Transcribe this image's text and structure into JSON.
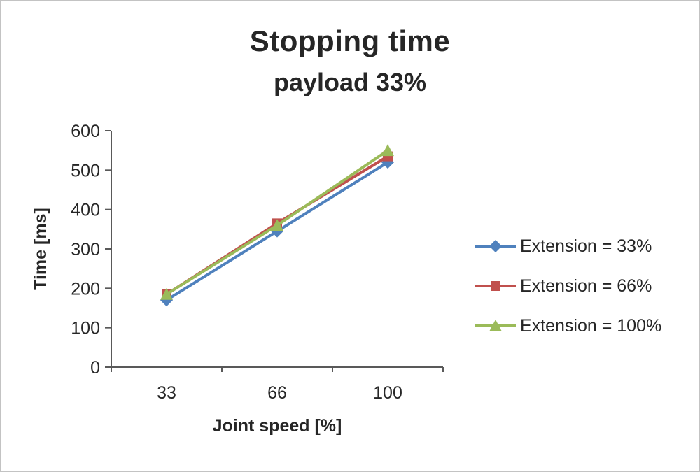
{
  "chart_data": {
    "type": "line",
    "title": "Stopping time",
    "subtitle": "payload 33%",
    "xlabel": "Joint speed [%]",
    "ylabel": "Time [ms]",
    "categories": [
      "33",
      "66",
      "100"
    ],
    "series": [
      {
        "name": "Extension = 33%",
        "color": "#4F81BD",
        "marker": "diamond",
        "values": [
          170,
          345,
          520
        ]
      },
      {
        "name": "Extension = 66%",
        "color": "#C0504D",
        "marker": "square",
        "values": [
          185,
          365,
          535
        ]
      },
      {
        "name": "Extension = 100%",
        "color": "#9BBB59",
        "marker": "triangle",
        "values": [
          185,
          360,
          550
        ]
      }
    ],
    "ylim": [
      0,
      600
    ],
    "ytick_step": 100,
    "grid": false,
    "legend_position": "right",
    "axis_color": "#595959",
    "text_color": "#262626"
  }
}
